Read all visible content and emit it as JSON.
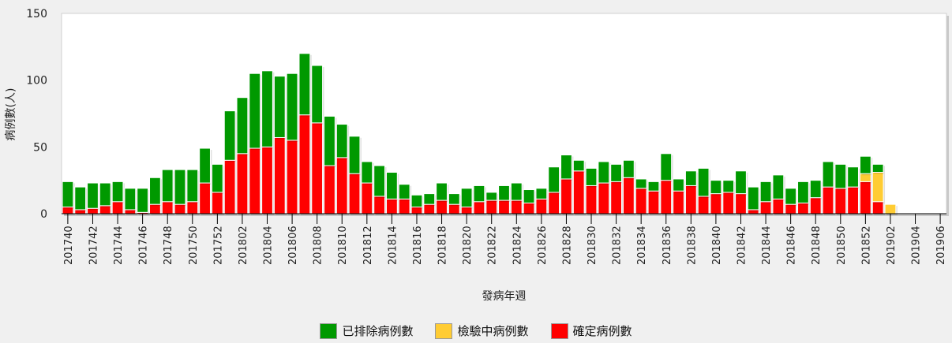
{
  "chart_data": {
    "type": "bar",
    "stacked": true,
    "xlabel": "發病年週",
    "ylabel": "病例數(人)",
    "ylim": [
      0,
      150
    ],
    "yticks": [
      0,
      50,
      100,
      150
    ],
    "categories": [
      "201740",
      "201741",
      "201742",
      "201743",
      "201744",
      "201745",
      "201746",
      "201747",
      "201748",
      "201749",
      "201750",
      "201751",
      "201752",
      "201801",
      "201802",
      "201803",
      "201804",
      "201805",
      "201806",
      "201807",
      "201808",
      "201809",
      "201810",
      "201811",
      "201812",
      "201813",
      "201814",
      "201815",
      "201816",
      "201817",
      "201818",
      "201819",
      "201820",
      "201821",
      "201822",
      "201823",
      "201824",
      "201825",
      "201826",
      "201827",
      "201828",
      "201829",
      "201830",
      "201831",
      "201832",
      "201833",
      "201834",
      "201835",
      "201836",
      "201837",
      "201838",
      "201839",
      "201840",
      "201841",
      "201842",
      "201843",
      "201844",
      "201845",
      "201846",
      "201847",
      "201848",
      "201849",
      "201850",
      "201851",
      "201852",
      "201901",
      "201902",
      "201903",
      "201904",
      "201905",
      "201906"
    ],
    "tick_labels": [
      "201740",
      "201742",
      "201744",
      "201746",
      "201748",
      "201750",
      "201752",
      "201802",
      "201804",
      "201806",
      "201808",
      "201810",
      "201812",
      "201814",
      "201816",
      "201818",
      "201820",
      "201822",
      "201824",
      "201826",
      "201828",
      "201830",
      "201832",
      "201834",
      "201836",
      "201838",
      "201840",
      "201842",
      "201844",
      "201846",
      "201848",
      "201850",
      "201852",
      "201902",
      "201904",
      "201906"
    ],
    "series": [
      {
        "name": "確定病例數",
        "color": "#ff0000",
        "values": [
          5,
          3,
          4,
          6,
          9,
          3,
          1,
          7,
          9,
          7,
          9,
          23,
          16,
          40,
          45,
          49,
          50,
          57,
          55,
          74,
          68,
          36,
          42,
          30,
          23,
          13,
          11,
          11,
          5,
          7,
          10,
          7,
          5,
          9,
          10,
          10,
          10,
          8,
          11,
          16,
          26,
          32,
          21,
          23,
          24,
          27,
          19,
          17,
          25,
          17,
          21,
          13,
          15,
          16,
          15,
          3,
          9,
          11,
          7,
          8,
          12,
          20,
          19,
          20,
          24,
          9,
          0,
          0,
          0,
          0,
          0
        ]
      },
      {
        "name": "檢驗中病例數",
        "color": "#ffcc33",
        "values": [
          0,
          0,
          0,
          0,
          0,
          0,
          0,
          0,
          0,
          0,
          0,
          0,
          0,
          0,
          0,
          0,
          0,
          0,
          0,
          0,
          0,
          0,
          0,
          0,
          0,
          0,
          0,
          0,
          0,
          0,
          0,
          0,
          0,
          0,
          0,
          0,
          0,
          0,
          0,
          0,
          0,
          0,
          0,
          0,
          0,
          0,
          0,
          0,
          0,
          0,
          0,
          0,
          0,
          0,
          0,
          0,
          0,
          0,
          0,
          0,
          0,
          0,
          0,
          0,
          6,
          22,
          7,
          0,
          0,
          0,
          0
        ]
      },
      {
        "name": "已排除病例數",
        "color": "#009900",
        "values": [
          19,
          17,
          19,
          17,
          15,
          16,
          18,
          20,
          24,
          26,
          24,
          26,
          21,
          37,
          42,
          56,
          57,
          46,
          50,
          46,
          43,
          37,
          25,
          28,
          16,
          23,
          20,
          11,
          9,
          8,
          13,
          8,
          14,
          12,
          6,
          11,
          13,
          10,
          8,
          19,
          18,
          8,
          13,
          16,
          13,
          13,
          7,
          7,
          20,
          9,
          11,
          21,
          10,
          9,
          17,
          17,
          15,
          18,
          12,
          16,
          13,
          19,
          18,
          15,
          13,
          6,
          0,
          0,
          0,
          0,
          0
        ]
      }
    ]
  },
  "legend": {
    "excluded": "已排除病例數",
    "testing": "檢驗中病例數",
    "confirmed": "確定病例數"
  }
}
